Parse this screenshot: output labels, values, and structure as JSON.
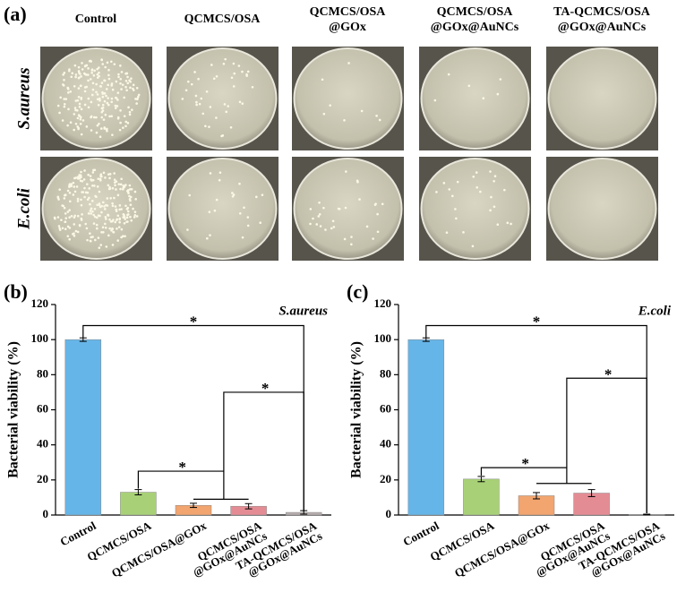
{
  "panel_a": {
    "label": "(a)",
    "columns": [
      "Control",
      "QCMCS/OSA",
      "QCMCS/OSA\n@GOx",
      "QCMCS/OSA\n@GOx@AuNCs",
      "TA-QCMCS/OSA\n@GOx@AuNCs"
    ],
    "rows": [
      "S.aureus",
      "E.coli"
    ]
  },
  "chart_data": [
    {
      "type": "bar",
      "panel_label": "(b)",
      "annotation": "S.aureus",
      "y_label": "Bacterial viability (%)",
      "categories": [
        "Control",
        "QCMCS/OSA",
        "QCMCS/OSA@GOx",
        "QCMCS/OSA\n@GOx@AuNCs",
        "TA-QCMCS/OSA\n@GOx@AuNCs"
      ],
      "values": [
        100,
        13,
        5.5,
        5,
        1.5
      ],
      "errors": [
        1,
        1.5,
        1.2,
        1.5,
        1
      ],
      "colors": [
        "#66b5e8",
        "#a8d177",
        "#f2a56f",
        "#e48c94",
        "#b7aeae"
      ],
      "ylim": [
        0,
        120
      ],
      "yticks": [
        0,
        20,
        40,
        60,
        80,
        100,
        120
      ],
      "significance_marks": [
        "*",
        "*",
        "*"
      ]
    },
    {
      "type": "bar",
      "panel_label": "(c)",
      "annotation": "E.coli",
      "y_label": "Bacterial viability (%)",
      "categories": [
        "Control",
        "QCMCS/OSA",
        "QCMCS/OSA@GOx",
        "QCMCS/OSA\n@GOx@AuNCs",
        "TA-QCMCS/OSA\n@GOx@AuNCs"
      ],
      "values": [
        100,
        20.5,
        11,
        12.5,
        0.3
      ],
      "errors": [
        1,
        1.5,
        1.8,
        2,
        0.2
      ],
      "colors": [
        "#66b5e8",
        "#a8d177",
        "#f2a56f",
        "#e48c94",
        "#b7aeae"
      ],
      "ylim": [
        0,
        120
      ],
      "yticks": [
        0,
        20,
        40,
        60,
        80,
        100,
        120
      ],
      "significance_marks": [
        "*",
        "*",
        "*"
      ]
    }
  ]
}
